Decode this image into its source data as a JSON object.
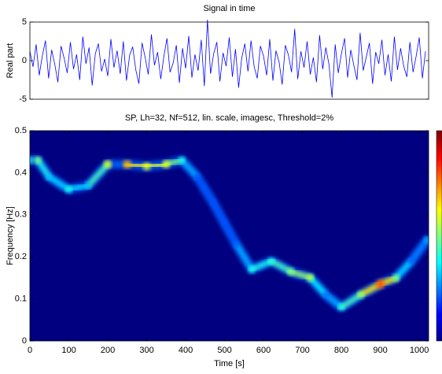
{
  "chart_data": [
    {
      "type": "line",
      "title": "Signal in time",
      "ylabel": "Real part",
      "color": "#0000ff",
      "xlim": [
        0,
        1024
      ],
      "ylim": [
        -5,
        5
      ],
      "yticks": [
        -5,
        0,
        5
      ],
      "x": [
        0,
        8,
        16,
        24,
        32,
        40,
        48,
        56,
        64,
        72,
        80,
        88,
        96,
        104,
        112,
        120,
        128,
        136,
        144,
        152,
        160,
        168,
        176,
        184,
        192,
        200,
        208,
        216,
        224,
        232,
        240,
        248,
        256,
        264,
        272,
        280,
        288,
        296,
        304,
        312,
        320,
        328,
        336,
        344,
        352,
        360,
        368,
        376,
        384,
        392,
        400,
        408,
        416,
        424,
        432,
        440,
        448,
        456,
        464,
        472,
        480,
        488,
        496,
        504,
        512,
        520,
        528,
        536,
        544,
        552,
        560,
        568,
        576,
        584,
        592,
        600,
        608,
        616,
        624,
        632,
        640,
        648,
        656,
        664,
        672,
        680,
        688,
        696,
        704,
        712,
        720,
        728,
        736,
        744,
        752,
        760,
        768,
        776,
        784,
        792,
        800,
        808,
        816,
        824,
        832,
        840,
        848,
        856,
        864,
        872,
        880,
        888,
        896,
        904,
        912,
        920,
        928,
        936,
        944,
        952,
        960,
        968,
        976,
        984,
        992,
        1000,
        1008,
        1016
      ],
      "values": [
        1.2,
        -0.8,
        2.1,
        -1.9,
        0.6,
        2.6,
        -2.3,
        1.4,
        -0.5,
        -2.8,
        1.9,
        0.3,
        -1.6,
        2.4,
        -1.1,
        0.8,
        -2.5,
        3.1,
        -0.4,
        1.7,
        -3.2,
        0.9,
        2.2,
        -1.4,
        0.2,
        -2.0,
        2.8,
        -0.9,
        1.3,
        -1.7,
        2.5,
        -2.6,
        0.7,
        1.8,
        -1.2,
        -3.0,
        2.3,
        0.4,
        -1.8,
        3.4,
        -0.6,
        1.1,
        -2.4,
        0.5,
        2.9,
        -1.5,
        -0.3,
        2.0,
        -2.9,
        1.6,
        -1.0,
        3.2,
        -2.2,
        0.8,
        -1.3,
        2.7,
        -3.3,
        5.3,
        -1.7,
        0.9,
        2.4,
        -2.7,
        1.0,
        -0.7,
        3.0,
        -2.1,
        1.5,
        -3.5,
        0.3,
        2.2,
        -1.4,
        2.6,
        -0.8,
        -2.3,
        1.9,
        0.6,
        -1.9,
        2.8,
        -2.6,
        1.3,
        -0.2,
        -3.1,
        2.0,
        0.7,
        -1.5,
        4.1,
        -2.4,
        1.2,
        -0.9,
        2.5,
        -1.8,
        0.4,
        -2.8,
        3.3,
        -1.1,
        1.7,
        -0.5,
        -4.8,
        2.1,
        -1.6,
        0.9,
        2.9,
        -2.2,
        1.4,
        -0.6,
        -2.5,
        3.6,
        -1.3,
        0.5,
        2.3,
        -3.0,
        1.1,
        -0.4,
        2.7,
        -1.9,
        0.8,
        -2.7,
        3.1,
        -1.2,
        1.6,
        -0.7,
        -2.1,
        2.4,
        -1.5,
        0.6,
        3.0,
        -2.3,
        1.2
      ]
    },
    {
      "type": "spectrogram",
      "title": "SP, Lh=32, Nf=512, lin. scale, imagesc, Threshold=2%",
      "xlabel": "Time [s]",
      "ylabel": "Frequency [Hz]",
      "xlim": [
        0,
        1024
      ],
      "ylim": [
        0,
        0.5
      ],
      "xticks": [
        0,
        100,
        200,
        300,
        400,
        500,
        600,
        700,
        800,
        900,
        1000
      ],
      "yticks": [
        0,
        0.1,
        0.2,
        0.3,
        0.4,
        0.5
      ],
      "x": [
        0,
        20,
        50,
        100,
        150,
        200,
        250,
        300,
        350,
        390,
        430,
        470,
        500,
        530,
        570,
        620,
        670,
        720,
        760,
        800,
        850,
        900,
        940,
        980,
        1020
      ],
      "frequency": [
        0.43,
        0.43,
        0.39,
        0.36,
        0.37,
        0.42,
        0.42,
        0.415,
        0.42,
        0.43,
        0.39,
        0.33,
        0.28,
        0.23,
        0.17,
        0.19,
        0.165,
        0.15,
        0.11,
        0.08,
        0.11,
        0.135,
        0.15,
        0.19,
        0.24
      ],
      "intensity": [
        0.4,
        0.5,
        0.3,
        0.4,
        0.3,
        0.6,
        0.7,
        0.6,
        0.6,
        0.4,
        0.2,
        0.2,
        0.2,
        0.2,
        0.4,
        0.4,
        0.5,
        0.55,
        0.2,
        0.4,
        0.5,
        0.8,
        0.5,
        0.2,
        0.3
      ]
    }
  ]
}
